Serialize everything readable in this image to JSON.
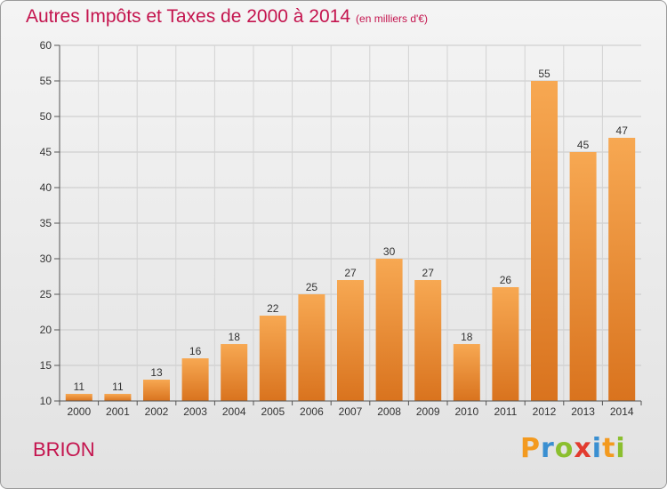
{
  "chart_data": {
    "type": "bar",
    "title": "Autres Impôts et Taxes de 2000 à 2014",
    "unit_label": "(en milliers d'€)",
    "categories": [
      "2000",
      "2001",
      "2002",
      "2003",
      "2004",
      "2005",
      "2006",
      "2007",
      "2008",
      "2009",
      "2010",
      "2011",
      "2012",
      "2013",
      "2014"
    ],
    "values": [
      11,
      11,
      13,
      16,
      18,
      22,
      25,
      27,
      30,
      27,
      18,
      26,
      55,
      45,
      47
    ],
    "yticks": [
      10,
      15,
      20,
      25,
      30,
      35,
      40,
      45,
      50,
      55,
      60
    ],
    "ylim": [
      10,
      60
    ],
    "grid": true,
    "bar_color_top": "#f7a852",
    "bar_color_bottom": "#d9731e"
  },
  "footer": {
    "commune": "BRION",
    "brand_letters": [
      "P",
      "r",
      "o",
      "x",
      "i",
      "t",
      "i"
    ],
    "brand_colors": [
      "#f39a1f",
      "#3a8fd1",
      "#8bbf2f",
      "#e23b2f",
      "#3a8fd1",
      "#f39a1f",
      "#8bbf2f"
    ]
  }
}
